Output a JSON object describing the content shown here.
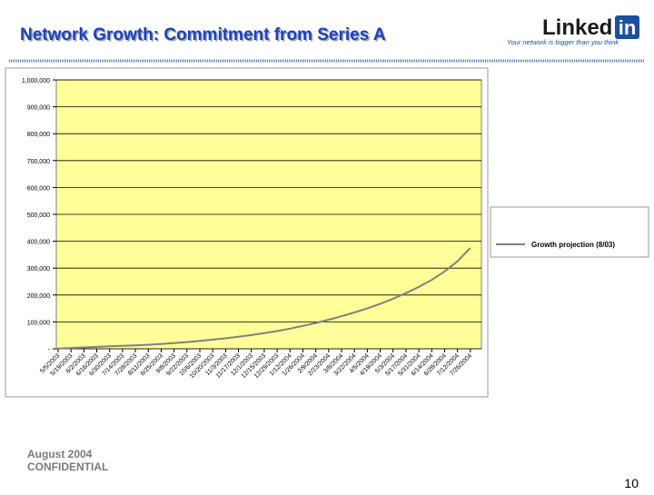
{
  "header": {
    "title": "Network Growth: Commitment from Series A"
  },
  "logo": {
    "word": "Linked",
    "badge": "in",
    "tagline": "Your network is bigger than you think"
  },
  "footer": {
    "date": "August 2004",
    "confidential": "CONFIDENTIAL",
    "page": "10"
  },
  "chart_data": {
    "type": "line",
    "categories": [
      "5/5/2003",
      "5/19/2003",
      "6/2/2003",
      "6/16/2003",
      "6/30/2003",
      "7/14/2003",
      "7/28/2003",
      "8/11/2003",
      "8/25/2003",
      "9/8/2003",
      "9/22/2003",
      "10/6/2003",
      "10/20/2003",
      "11/3/2003",
      "11/17/2003",
      "12/1/2003",
      "12/15/2003",
      "12/29/2003",
      "1/12/2004",
      "1/26/2004",
      "2/9/2004",
      "2/23/2004",
      "3/8/2004",
      "3/22/2004",
      "4/5/2004",
      "4/19/2004",
      "5/3/2004",
      "5/17/2004",
      "5/31/2004",
      "6/14/2004",
      "6/28/2004",
      "7/12/2004",
      "7/26/2004"
    ],
    "series": [
      {
        "name": "Growth projection (8/03)",
        "color": "#808080",
        "values": [
          1000,
          3000,
          5000,
          7000,
          9000,
          11000,
          13000,
          15000,
          18000,
          21000,
          25000,
          29000,
          34000,
          39000,
          45000,
          51000,
          58000,
          66000,
          75000,
          85000,
          96000,
          108000,
          121000,
          135000,
          150000,
          167000,
          186000,
          207000,
          230000,
          256000,
          288000,
          325000,
          375000
        ]
      }
    ],
    "ylim": [
      0,
      1000000
    ],
    "yticks": [
      {
        "value": 0,
        "label": "-"
      },
      {
        "value": 100000,
        "label": "100,000"
      },
      {
        "value": 200000,
        "label": "200,000"
      },
      {
        "value": 300000,
        "label": "300,000"
      },
      {
        "value": 400000,
        "label": "400,000"
      },
      {
        "value": 500000,
        "label": "500,000"
      },
      {
        "value": 600000,
        "label": "600,000"
      },
      {
        "value": 700000,
        "label": "700,000"
      },
      {
        "value": 800000,
        "label": "800,000"
      },
      {
        "value": 900000,
        "label": "900,000"
      },
      {
        "value": 1000000,
        "label": "1,000,000"
      }
    ],
    "grid": true,
    "plot_color": "#ffff99",
    "legend": "right"
  }
}
